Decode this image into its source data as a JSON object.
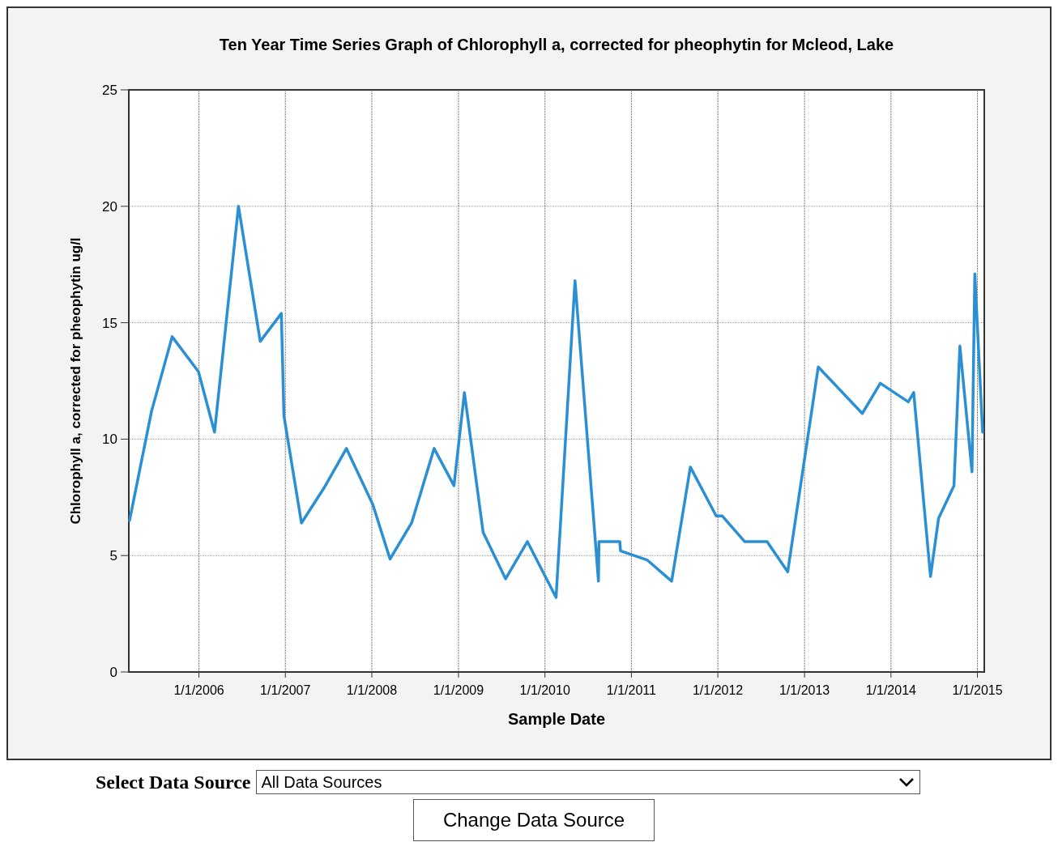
{
  "chart_data": {
    "type": "line",
    "title": "Ten Year Time Series Graph of Chlorophyll a, corrected for pheophytin for Mcleod, Lake",
    "xlabel": "Sample Date",
    "ylabel": "Chlorophyll a, corrected for pheophytin ug/l",
    "x": [
      "2005-03-14",
      "2005-06-15",
      "2005-09-10",
      "2005-12-30",
      "2006-03-08",
      "2006-06-17",
      "2006-09-17",
      "2006-12-15",
      "2006-12-26",
      "2007-03-10",
      "2007-06-13",
      "2007-09-16",
      "2008-01-05",
      "2008-03-18",
      "2008-06-17",
      "2008-09-20",
      "2008-12-13",
      "2009-01-26",
      "2009-04-15",
      "2009-07-19",
      "2009-10-19",
      "2010-02-17",
      "2010-05-08",
      "2010-08-15",
      "2010-08-17",
      "2010-11-13",
      "2010-11-16",
      "2011-03-10",
      "2011-06-20",
      "2011-09-07",
      "2011-12-25",
      "2012-01-20",
      "2012-04-23",
      "2012-07-27",
      "2012-10-22",
      "2013-02-28",
      "2013-09-02",
      "2013-11-17",
      "2014-03-15",
      "2014-04-07",
      "2014-06-17",
      "2014-07-21",
      "2014-09-24",
      "2014-10-19",
      "2014-12-09",
      "2014-12-21",
      "2015-01-23"
    ],
    "series": [
      {
        "color": "#2b8fd4",
        "values": [
          6.5,
          11.2,
          14.4,
          12.9,
          10.3,
          20.0,
          14.2,
          15.4,
          11.0,
          6.4,
          7.9,
          9.6,
          7.2,
          4.85,
          6.4,
          9.6,
          8.0,
          12.0,
          6.0,
          4.0,
          5.6,
          3.2,
          16.8,
          3.9,
          5.6,
          5.6,
          5.2,
          4.8,
          3.9,
          8.8,
          6.7,
          6.7,
          5.6,
          5.6,
          4.3,
          13.1,
          11.1,
          12.4,
          11.6,
          12.0,
          4.1,
          6.6,
          8.0,
          14.0,
          8.6,
          17.1,
          10.3
        ]
      }
    ],
    "xlim": [
      "2005-03-11",
      "2015-01-30"
    ],
    "xticks": [
      {
        "value": "2006-01-01",
        "label": "1/1/2006"
      },
      {
        "value": "2007-01-01",
        "label": "1/1/2007"
      },
      {
        "value": "2008-01-01",
        "label": "1/1/2008"
      },
      {
        "value": "2009-01-01",
        "label": "1/1/2009"
      },
      {
        "value": "2010-01-01",
        "label": "1/1/2010"
      },
      {
        "value": "2011-01-01",
        "label": "1/1/2011"
      },
      {
        "value": "2012-01-01",
        "label": "1/1/2012"
      },
      {
        "value": "2013-01-01",
        "label": "1/1/2013"
      },
      {
        "value": "2014-01-01",
        "label": "1/1/2014"
      },
      {
        "value": "2015-01-01",
        "label": "1/1/2015"
      }
    ],
    "ylim": [
      0,
      25
    ],
    "yticks": [
      0,
      5,
      10,
      15,
      20,
      25
    ],
    "grid": true,
    "marker": "none",
    "line_style": "solid",
    "annotations": [
      "Select Data Source",
      "All Data Sources",
      "Change Data Source"
    ]
  }
}
